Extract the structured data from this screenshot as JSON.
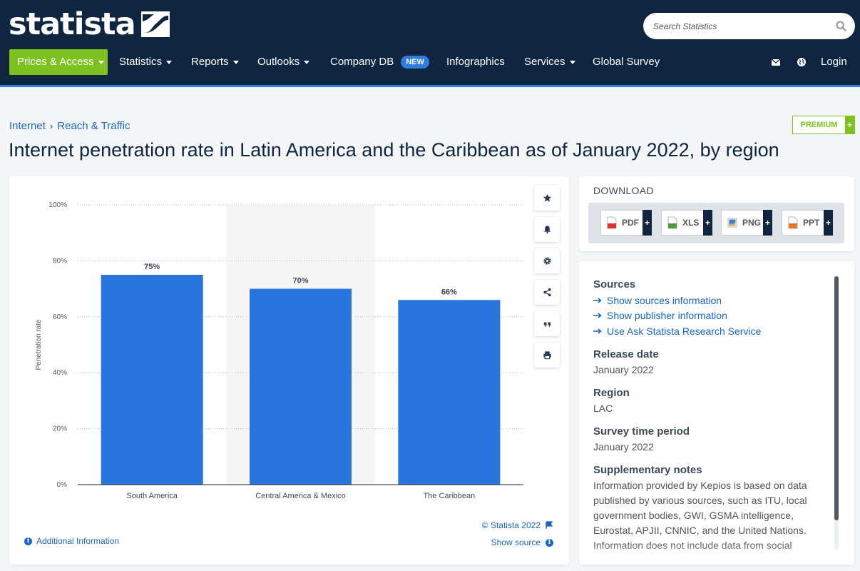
{
  "header": {
    "logo_text": "statista",
    "search_placeholder": "Search Statistics",
    "nav": [
      {
        "label": "Prices & Access"
      },
      {
        "label": "Statistics"
      },
      {
        "label": "Reports"
      },
      {
        "label": "Outlooks"
      },
      {
        "label": "Company DB",
        "badge": "NEW"
      },
      {
        "label": "Infographics"
      },
      {
        "label": "Services"
      },
      {
        "label": "Global Survey"
      }
    ],
    "login_label": "Login"
  },
  "breadcrumb": [
    "Internet",
    "Reach & Traffic"
  ],
  "premium_label": "PREMIUM",
  "premium_plus": "+",
  "page_title": "Internet penetration rate in Latin America and the Caribbean as of January 2022, by region",
  "chart_data": {
    "type": "bar",
    "categories": [
      "South America",
      "Central America & Mexico",
      "The Caribbean"
    ],
    "values": [
      75,
      70,
      66
    ],
    "data_labels": [
      "75%",
      "70%",
      "66%"
    ],
    "ylabel": "Penetration rate",
    "ylim": [
      0,
      100
    ],
    "yticks": [
      "0%",
      "20%",
      "40%",
      "60%",
      "80%",
      "100%"
    ],
    "grid": true,
    "highlighted_category": "Central America & Mexico",
    "bar_color": "#2876dd"
  },
  "chart_footer": {
    "copyright": "© Statista 2022",
    "show_source": "Show source",
    "additional_info": "Additional Information"
  },
  "toolbar_icons": [
    "star-icon",
    "bell-icon",
    "gear-icon",
    "share-icon",
    "quote-icon",
    "print-icon"
  ],
  "download": {
    "title": "DOWNLOAD",
    "formats": [
      "PDF",
      "XLS",
      "PNG",
      "PPT"
    ],
    "plus": "+"
  },
  "details": {
    "sources_heading": "Sources",
    "source_links": [
      "Show sources information",
      "Show publisher information",
      "Use Ask Statista Research Service"
    ],
    "release_date_heading": "Release date",
    "release_date": "January 2022",
    "region_heading": "Region",
    "region": "LAC",
    "survey_period_heading": "Survey time period",
    "survey_period": "January 2022",
    "notes_heading": "Supplementary notes",
    "notes": "Information provided by Kepios is based on data published by various sources, such as ITU, local government bodies, GWI, GSMA intelligence, Eurostat, APJII, CNNIC, and the United Nations. Information does not include data from social"
  },
  "colors": {
    "navy": "#0f2540",
    "green": "#7dc21f",
    "blue_link": "#1a66c4",
    "accent_blue": "#2f7de1"
  }
}
